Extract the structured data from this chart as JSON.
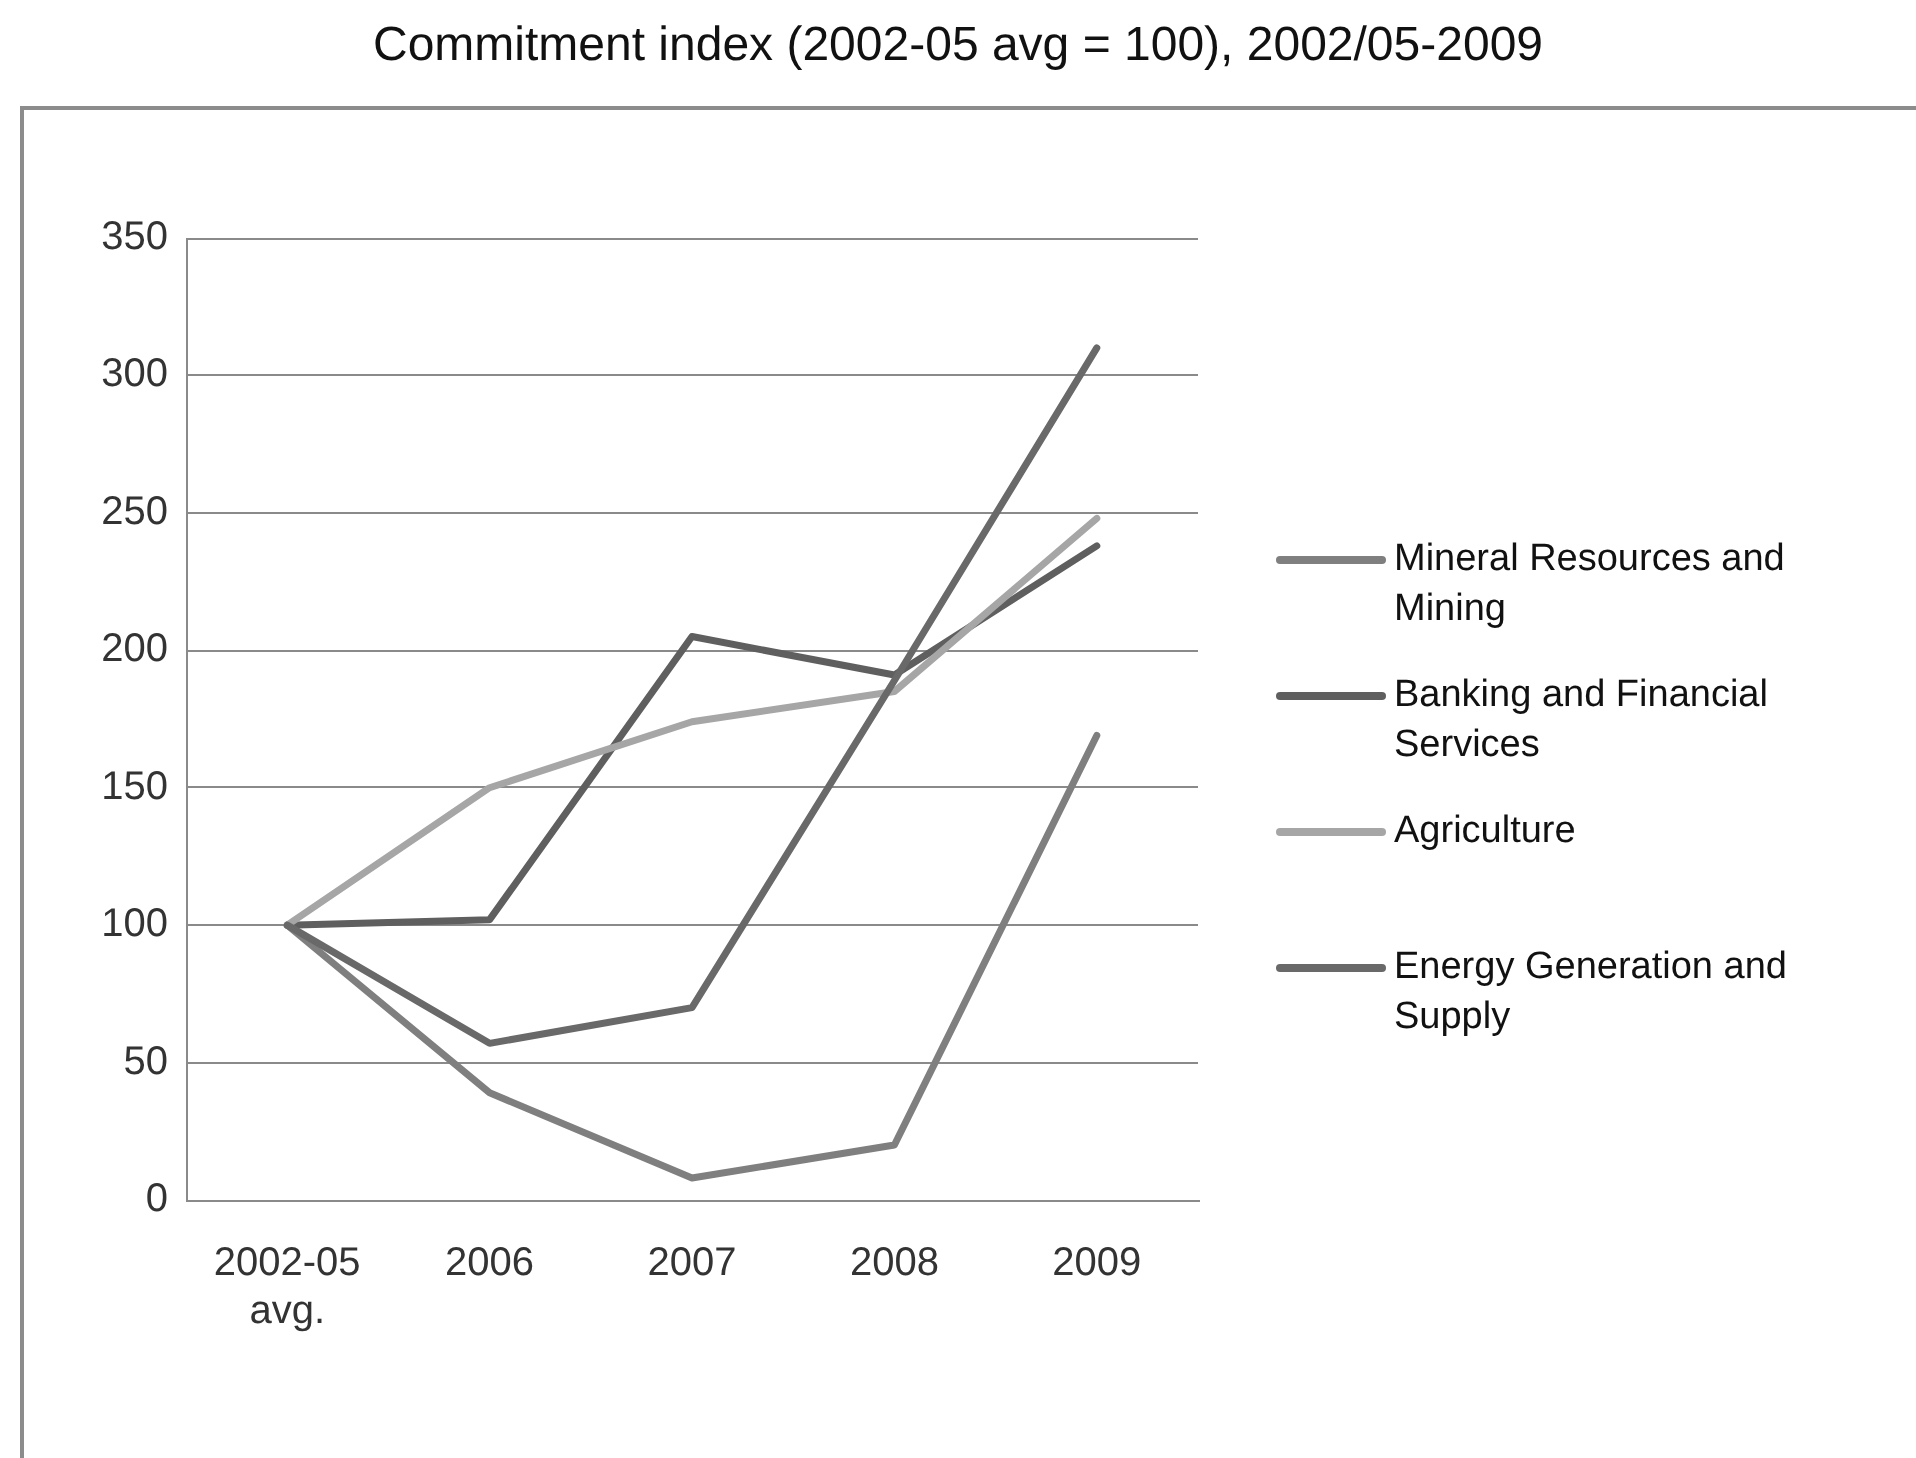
{
  "chart_data": {
    "type": "line",
    "title": "Commitment index (2002-05 avg = 100), 2002/05-2009",
    "categories": [
      "2002-05 avg.",
      "2006",
      "2007",
      "2008",
      "2009"
    ],
    "series": [
      {
        "name": "Mineral Resources and Mining",
        "color": "#7f7f7f",
        "values": [
          100,
          39,
          8,
          20,
          169
        ]
      },
      {
        "name": "Banking and Financial Services",
        "color": "#5f5f5f",
        "values": [
          100,
          102,
          205,
          191,
          238
        ]
      },
      {
        "name": "Agriculture",
        "color": "#a6a6a6",
        "values": [
          100,
          150,
          174,
          185,
          248
        ]
      },
      {
        "name": "Energy Generation and Supply",
        "color": "#696969",
        "values": [
          100,
          57,
          70,
          189,
          310
        ]
      }
    ],
    "ylim": [
      0,
      350
    ],
    "yticks": [
      0,
      50,
      100,
      150,
      200,
      250,
      300,
      350
    ],
    "grid": "y",
    "legend": "right",
    "marker": "none"
  }
}
